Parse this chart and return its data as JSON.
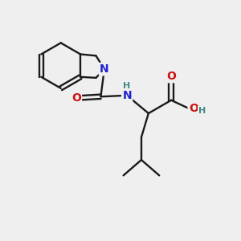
{
  "bg_color": "#efefef",
  "bond_color": "#1a1a1a",
  "N_color": "#2222cc",
  "O_color": "#cc1111",
  "H_color": "#448888",
  "lw": 1.7,
  "fs": 10,
  "xlim": [
    0,
    10
  ],
  "ylim": [
    0,
    10
  ]
}
